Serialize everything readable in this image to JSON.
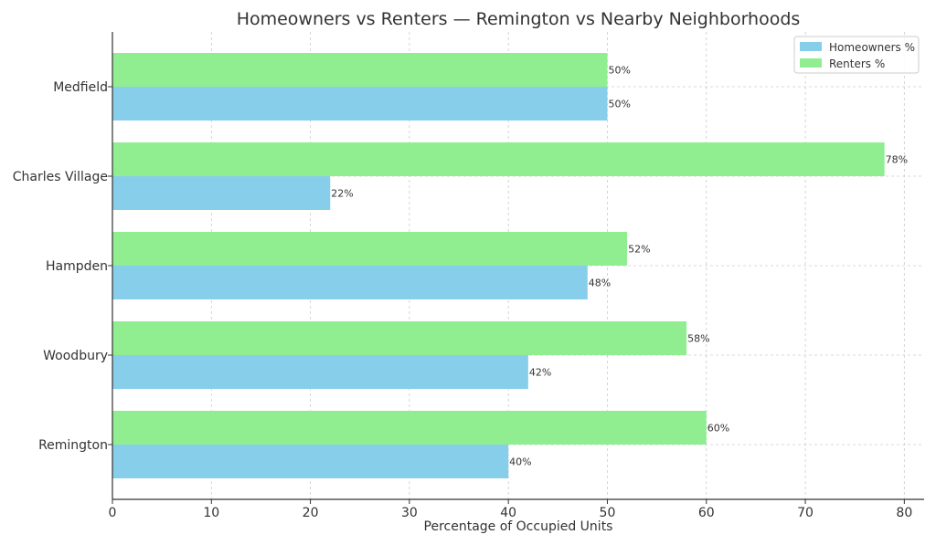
{
  "chart_data": {
    "type": "bar",
    "orientation": "horizontal",
    "title": "Homeowners vs Renters — Remington vs Nearby Neighborhoods",
    "xlabel": "Percentage of Occupied Units",
    "ylabel": "",
    "categories": [
      "Remington",
      "Woodbury",
      "Hampden",
      "Charles Village",
      "Medfield"
    ],
    "series": [
      {
        "name": "Homeowners %",
        "color": "#87ceeb",
        "values": [
          40,
          42,
          48,
          22,
          50
        ],
        "labels": [
          "40%",
          "42%",
          "48%",
          "22%",
          "50%"
        ]
      },
      {
        "name": "Renters %",
        "color": "#90ee90",
        "values": [
          60,
          58,
          52,
          78,
          50
        ],
        "labels": [
          "60%",
          "58%",
          "52%",
          "78%",
          "50%"
        ]
      }
    ],
    "xlim": [
      0,
      82
    ],
    "xticks": [
      0,
      10,
      20,
      30,
      40,
      50,
      60,
      70,
      80
    ],
    "xtick_labels": [
      "0",
      "10",
      "20",
      "30",
      "40",
      "50",
      "60",
      "70",
      "80"
    ],
    "grid": true,
    "legend_position": "top-right"
  }
}
